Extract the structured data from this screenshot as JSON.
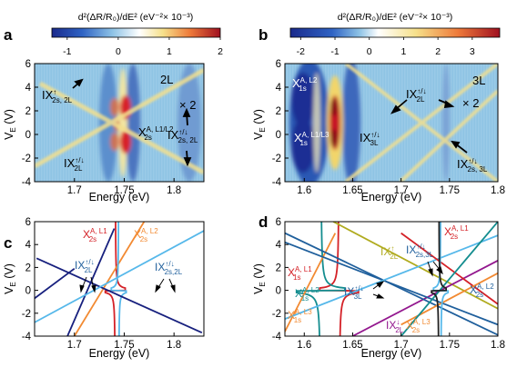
{
  "colors": {
    "bg_map": "#8fc4e4",
    "navy": "#17207e",
    "skyblue": "#56b8ea",
    "red": "#d42127",
    "orange": "#f28a32",
    "teal": "#148d8f",
    "olive": "#b0ab1e",
    "purple": "#93178e",
    "steel": "#1f5f9c",
    "gold": "#f0b040",
    "black": "#222222"
  },
  "chart_data": [
    {
      "id": "a",
      "panel_label": "a",
      "type": "heatmap",
      "colorbar": {
        "title": "d²(ΔR/R₀)/dE² (eV⁻²× 10⁻³)",
        "ticks": [
          "-1",
          "0",
          "1",
          "2"
        ],
        "range": [
          -1.3,
          2.0
        ]
      },
      "xlabel": "Energy (eV)",
      "ylabel": "V_E (V)",
      "xlim": [
        1.66,
        1.83
      ],
      "ylim": [
        -4,
        6
      ],
      "xticks": [
        "1.7",
        "1.75",
        "1.8"
      ],
      "yticks": [
        "-4",
        "-2",
        "0",
        "2",
        "4",
        "6"
      ],
      "magnification_label": "× 2",
      "annotations": [
        "2L"
      ]
    },
    {
      "id": "b",
      "panel_label": "b",
      "type": "heatmap",
      "colorbar": {
        "title": "d²(ΔR/R₀)/dE² (eV⁻²× 10⁻³)",
        "ticks": [
          "-2",
          "-1",
          "0",
          "1",
          "2",
          "3"
        ],
        "range": [
          -2.3,
          3.8
        ]
      },
      "xlabel": "Energy (eV)",
      "ylabel": "V_E (V)",
      "xlim": [
        1.58,
        1.8
      ],
      "ylim": [
        -4,
        6
      ],
      "xticks": [
        "1.6",
        "1.65",
        "1.7",
        "1.75",
        "1.8"
      ],
      "yticks": [
        "-4",
        "-2",
        "0",
        "2",
        "4",
        "6"
      ],
      "magnification_label": "× 2",
      "annotations": [
        "3L"
      ]
    },
    {
      "id": "c",
      "panel_label": "c",
      "type": "line",
      "xlabel": "Energy (eV)",
      "ylabel": "V_E (V)",
      "xlim": [
        1.66,
        1.83
      ],
      "ylim": [
        -4,
        6
      ],
      "xticks": [
        "1.7",
        "1.75",
        "1.8"
      ],
      "yticks": [
        "-4",
        "-2",
        "0",
        "2",
        "4",
        "6"
      ],
      "series": [
        {
          "label_html": "X<tspan class='sup' dy='-5'>A, L1</tspan><tspan class='sup' dx='-20' dy='9'>2s</tspan>",
          "color": "#d42127",
          "kind": "vertical",
          "x0": 1.741,
          "k": 0.002,
          "dir": 1
        },
        {
          "label_html": "X<tspan class='sup' dy='-5'>A, L2</tspan><tspan class='sup' dx='-20' dy='9'>2s</tspan>",
          "color": "#f28a32",
          "kind": "line",
          "x1": 1.7,
          "y1": -4,
          "x2": 1.77,
          "y2": 6
        },
        {
          "label_html": "",
          "color": "#56b8ea",
          "kind": "vertical",
          "x0": 1.7445,
          "k": 0.0015,
          "dir": -1
        },
        {
          "label_html": "IX<tspan class='sup' dy='-5'>↑/↓</tspan><tspan class='sup' dx='-11' dy='9'>2L</tspan>",
          "color": "#17207e",
          "kind": "line",
          "x1": 1.662,
          "y1": 2.8,
          "x2": 1.828,
          "y2": -3.7
        },
        {
          "label_html": "",
          "color": "#17207e",
          "kind": "line",
          "x1": 1.66,
          "y1": -0.7,
          "x2": 1.7,
          "y2": 1.9
        },
        {
          "label_html": "",
          "color": "#17207e",
          "kind": "line",
          "x1": 1.693,
          "y1": -4,
          "x2": 1.74,
          "y2": 5.4
        },
        {
          "label_html": "IX<tspan class='sup' dy='-5'>↑/↓</tspan><tspan class='sup' dx='-11' dy='9'>2s,2L</tspan>",
          "color": "#56b8ea",
          "kind": "line",
          "x1": 1.66,
          "y1": -2.8,
          "x2": 1.83,
          "y2": 5.2
        }
      ]
    },
    {
      "id": "d",
      "panel_label": "d",
      "type": "line",
      "xlabel": "Energy (eV)",
      "ylabel": "V_E (V)",
      "xlim": [
        1.58,
        1.8
      ],
      "ylim": [
        -4,
        6
      ],
      "xticks": [
        "1.6",
        "1.65",
        "1.7",
        "1.75",
        "1.8"
      ],
      "yticks": [
        "-4",
        "-2",
        "0",
        "2",
        "4",
        "6"
      ],
      "series": [
        {
          "label_html": "X<tspan class='sup' dy='-5'>A, L1</tspan><tspan class='sup' dx='-20' dy='9'>1s</tspan>",
          "color": "#d42127",
          "kind": "vertical",
          "x0": 1.636,
          "k": 0.004,
          "dir": -1
        },
        {
          "label_html": "X<tspan class='sup' dy='-5'>A, L2</tspan><tspan class='sup' dx='-20' dy='9'>1s</tspan>",
          "color": "#148d8f",
          "kind": "vertical",
          "x0": 1.617,
          "k": 0.005,
          "dir": 1
        },
        {
          "label_html": "X<tspan class='sup' dy='-5'>A, L3</tspan><tspan class='sup' dx='-20' dy='9'>1s</tspan>",
          "color": "#f28a32",
          "kind": "line",
          "x1": 1.58,
          "y1": -3.6,
          "x2": 1.632,
          "y2": 5.0
        },
        {
          "label_html": "IX<tspan class='sup' dy='-5'>↑</tspan><tspan class='sup' dx='-5' dy='9'>2L</tspan>",
          "color": "#b0ab1e",
          "kind": "line",
          "x1": 1.63,
          "y1": 6,
          "x2": 1.8,
          "y2": -1.6
        },
        {
          "label_html": "IX<tspan class='sup' dy='-5'>↓</tspan><tspan class='sup' dx='-5' dy='9'>2L</tspan>",
          "color": "#93178e",
          "kind": "line",
          "x1": 1.65,
          "y1": -4,
          "x2": 1.8,
          "y2": 2.6
        },
        {
          "label_html": "IX<tspan class='sup' dy='-5'>↑/↓</tspan><tspan class='sup' dx='-11' dy='9'>3L</tspan>",
          "color": "#1f5f9c",
          "kind": "line",
          "x1": 1.58,
          "y1": 5.0,
          "x2": 1.8,
          "y2": -3.9
        },
        {
          "label_html": "",
          "color": "#1f5f9c",
          "kind": "line",
          "x1": 1.58,
          "y1": 4.2,
          "x2": 1.8,
          "y2": -3.0
        },
        {
          "label_html": "IX<tspan class='sup' dy='-5'>↑/↓</tspan><tspan class='sup' dx='-11' dy='9'>2s,3L</tspan>",
          "color": "#56b8ea",
          "kind": "line",
          "x1": 1.58,
          "y1": -2.5,
          "x2": 1.8,
          "y2": 4.8
        },
        {
          "label_html": "X<tspan class='sup' dy='-5'>A, L1</tspan><tspan class='sup' dx='-20' dy='9'>2s</tspan>",
          "color": "#d42127",
          "kind": "line",
          "x1": 1.7,
          "y1": 5.0,
          "x2": 1.8,
          "y2": -1.2
        },
        {
          "label_html": "X<tspan class='sup' dy='-5'>A, L2</tspan><tspan class='sup' dx='-20' dy='9'>2s</tspan>",
          "color": "#f28a32",
          "kind": "line",
          "x1": 1.7,
          "y1": -3.0,
          "x2": 1.8,
          "y2": 1.5
        },
        {
          "label_html": "X<tspan class='sup' dy='-5'>A, L3</tspan><tspan class='sup' dx='-20' dy='9'>2s</tspan>",
          "color": "#148d8f",
          "kind": "line",
          "x1": 1.7,
          "y1": -4,
          "x2": 1.8,
          "y2": 6
        },
        {
          "label_html": "",
          "color": "#56b8ea",
          "kind": "vertical",
          "x0": 1.741,
          "k": 0.0015,
          "dir": -1
        },
        {
          "label_html": "",
          "color": "#222222",
          "kind": "vertical",
          "x0": 1.739,
          "k": 0.0015,
          "dir": 1
        }
      ]
    }
  ]
}
